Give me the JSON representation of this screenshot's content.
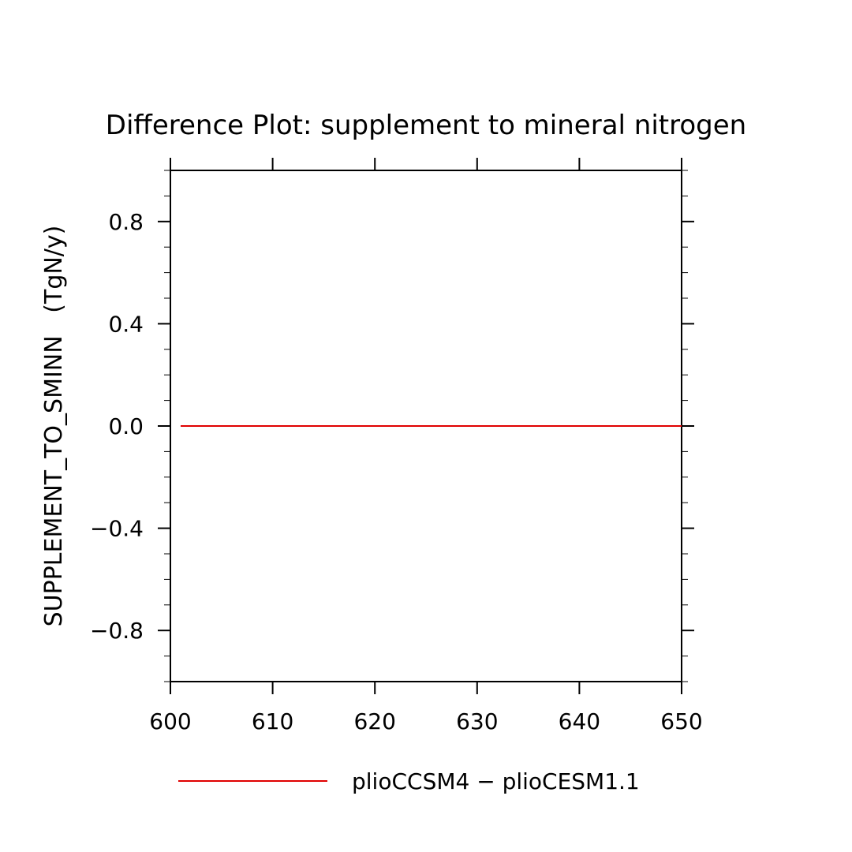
{
  "chart_data": {
    "type": "line",
    "title": "Difference Plot: supplement to mineral nitrogen",
    "xlabel": "",
    "ylabel": "SUPPLEMENT_TO_SMINN   (TgN/y)",
    "xlim": [
      600,
      650
    ],
    "ylim": [
      -1.0,
      1.0
    ],
    "x_ticks": [
      600,
      610,
      620,
      630,
      640,
      650
    ],
    "x_tick_labels": [
      "600",
      "610",
      "620",
      "630",
      "640",
      "650"
    ],
    "y_ticks": [
      0.8,
      0.4,
      0.0,
      -0.4,
      -0.8
    ],
    "y_tick_labels": [
      "0.8",
      "0.4",
      "0.0",
      "−0.4",
      "−0.8"
    ],
    "grid": false,
    "legend_position": "bottom",
    "series": [
      {
        "name": "plioCCSM4 − plioCESM1.1",
        "color": "#e00000",
        "x": [
          601,
          650
        ],
        "y": [
          0.0,
          0.0
        ]
      }
    ]
  }
}
